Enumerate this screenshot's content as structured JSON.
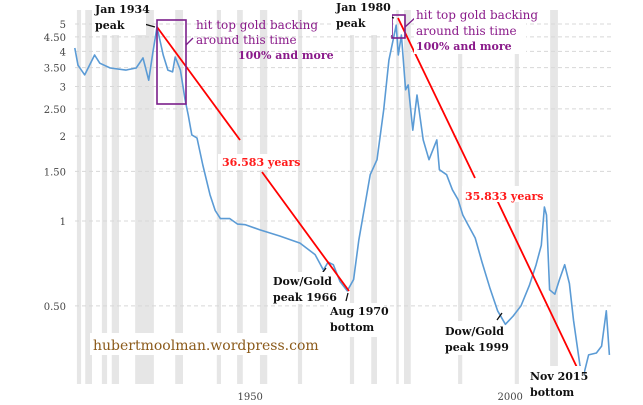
{
  "chart_data": {
    "type": "line",
    "title": "",
    "xlabel": "",
    "ylabel": "",
    "y_scale": "log",
    "ylim": [
      0.26,
      5.6
    ],
    "xlim": [
      1918,
      2021.1
    ],
    "grid": "horizontal dashed",
    "y_ticks": [
      {
        "value": 5,
        "label": "5"
      },
      {
        "value": 4.5,
        "label": "4.50"
      },
      {
        "value": 4,
        "label": "4"
      },
      {
        "value": 3.5,
        "label": "3.50"
      },
      {
        "value": 3,
        "label": "3"
      },
      {
        "value": 2.5,
        "label": "2.50"
      },
      {
        "value": 2,
        "label": "2"
      },
      {
        "value": 1.5,
        "label": "1.50"
      },
      {
        "value": 1,
        "label": "1"
      },
      {
        "value": 0.5,
        "label": "0.50"
      }
    ],
    "x_ticks": [
      {
        "value": 1950,
        "label": "1950"
      },
      {
        "value": 2000,
        "label": "2000"
      }
    ],
    "series_color": "#5b9bd5",
    "shaded_color": "#e6e6e6",
    "shaded_periods": [
      [
        1918.6,
        1919.4
      ],
      [
        1920.2,
        1921.5
      ],
      [
        1923.4,
        1924.4
      ],
      [
        1925.3,
        1926.7
      ],
      [
        1929.8,
        1933.4
      ],
      [
        1937.5,
        1939
      ],
      [
        1945.5,
        1946.3
      ],
      [
        1949.4,
        1950.5
      ],
      [
        1953.8,
        1955.2
      ],
      [
        1961.1,
        1961.9
      ],
      [
        1971.1,
        1971.9
      ],
      [
        1975.2,
        1976.3
      ],
      [
        1980,
        1980.5
      ],
      [
        1981.5,
        1982.8
      ],
      [
        1991.9,
        1992.7
      ],
      [
        2002.8,
        2003.6
      ],
      [
        2009.6,
        2011.1
      ]
    ],
    "series": [
      {
        "x": [
          1918.2,
          1918.8,
          1920.1,
          1922,
          1923,
          1925,
          1928,
          1930,
          1931.3,
          1932.4,
          1933.2,
          1934,
          1935.2,
          1936.1,
          1937,
          1937.5,
          1938.5,
          1939.4,
          1940,
          1940.7,
          1941.7,
          1942.8,
          1944.2,
          1945.2,
          1946.2,
          1948,
          1949.5,
          1951,
          1953.8,
          1957.6,
          1961.5,
          1964.4,
          1966,
          1966.9,
          1967.9,
          1969.2,
          1970.6,
          1971.8,
          1972.8,
          1973.8,
          1975,
          1976.3,
          1977.6,
          1978.6,
          1980,
          1980.4,
          1981,
          1981.8,
          1982.3,
          1983.2,
          1984,
          1985.2,
          1986.3,
          1987.8,
          1988.3,
          1989.7,
          1990.8,
          1991.9,
          1992.8,
          1993.8,
          1995.2,
          1996.5,
          1998,
          1999.5,
          2001,
          2002.5,
          2004,
          2005.6,
          2006.9,
          2007.9,
          2008.5,
          2008.9,
          2009.5,
          2010.5,
          2011.4,
          2012.4,
          2013.3,
          2014.1,
          2015.3,
          2015.9,
          2017,
          2018.5,
          2019.5,
          2020.4,
          2021
        ],
        "y": [
          4.11,
          3.57,
          3.3,
          3.88,
          3.63,
          3.49,
          3.43,
          3.49,
          3.79,
          3.16,
          3.95,
          4.88,
          3.88,
          3.43,
          3.38,
          3.82,
          3.43,
          2.69,
          2.38,
          2.02,
          1.97,
          1.58,
          1.24,
          1.09,
          1.02,
          1.02,
          0.975,
          0.97,
          0.93,
          0.885,
          0.835,
          0.76,
          0.67,
          0.715,
          0.7,
          0.61,
          0.565,
          0.62,
          0.855,
          1.09,
          1.46,
          1.65,
          2.48,
          3.72,
          4.95,
          3.88,
          4.57,
          2.92,
          3.04,
          2.1,
          2.8,
          1.94,
          1.65,
          1.94,
          1.52,
          1.46,
          1.29,
          1.19,
          1.05,
          0.97,
          0.87,
          0.715,
          0.58,
          0.48,
          0.43,
          0.46,
          0.5,
          0.59,
          0.7,
          0.82,
          1.12,
          1.05,
          0.57,
          0.55,
          0.62,
          0.7,
          0.6,
          0.445,
          0.31,
          0.277,
          0.335,
          0.34,
          0.36,
          0.48,
          0.335
        ]
      }
    ]
  },
  "annotations": {
    "peak1934": [
      "Jan  1934",
      "peak"
    ],
    "peak1980": [
      "Jan  1980",
      "peak"
    ],
    "gold_backing_1": [
      "hit  top  gold  backing",
      "around  this  time",
      "100%  and  more"
    ],
    "gold_backing_2": [
      "hit  top  gold  backing",
      "around  this  time",
      "100%  and  more"
    ],
    "years_1": "36.583  years",
    "years_2": "35.833  years",
    "dowgold1966": [
      "Dow/Gold",
      "peak  1966"
    ],
    "bottom1970": [
      "Aug  1970",
      "bottom"
    ],
    "dowgold1999": [
      "Dow/Gold",
      "peak  1999"
    ],
    "bottom2015": [
      "Nov  2015",
      "bottom"
    ],
    "watermark": "hubertmoolman.wordpress.com",
    "trend_color": "#ff0000",
    "box_color": "#7b1f8a"
  }
}
